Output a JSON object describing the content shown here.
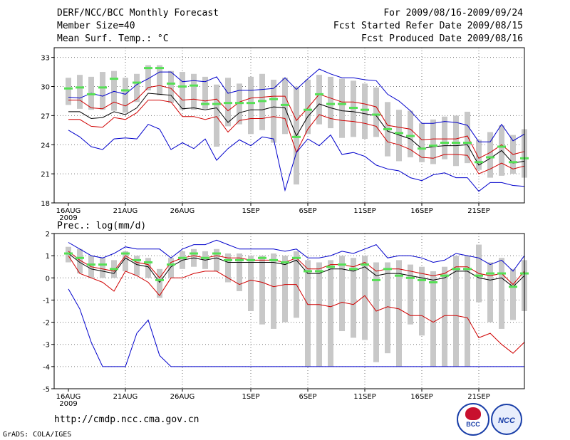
{
  "header": {
    "title": "DERF/NCC/BCC Monthly Forecast",
    "member_size": "Member Size=40",
    "variable": "Mean Surf. Temp.: °C",
    "for_period": "For 2009/08/16-2009/09/24",
    "fcst_started": "Fcst Started Refer Date 2009/08/15",
    "fcst_produced": "Fcst Produced Date 2009/08/16"
  },
  "panel2_label": "Prec.: log(mm/d)",
  "footer": {
    "url": "http://cmdp.ncc.cma.gov.cn",
    "grads": "GrADS: COLA/IGES",
    "logo_left_text": "BCC",
    "logo_right_text": "NCC"
  },
  "colors": {
    "box": "#c8c8c8",
    "median": "#55e055",
    "mean": "#000000",
    "spread": "#d00000",
    "extreme": "#0000cc"
  },
  "chart_data": [
    {
      "type": "line",
      "name": "temperature",
      "ylabel": "Mean Surf. Temp.: °C",
      "ylim": [
        18,
        34
      ],
      "yticks": [
        18,
        21,
        24,
        27,
        30,
        33
      ],
      "xlim": [
        0,
        39
      ],
      "xticks": [
        {
          "i": 0,
          "label": "16AUG",
          "sub": "2009"
        },
        {
          "i": 5,
          "label": "21AUG"
        },
        {
          "i": 10,
          "label": "26AUG"
        },
        {
          "i": 16,
          "label": "1SEP"
        },
        {
          "i": 21,
          "label": "6SEP"
        },
        {
          "i": 26,
          "label": "11SEP"
        },
        {
          "i": 31,
          "label": "16SEP"
        },
        {
          "i": 36,
          "label": "21SEP"
        }
      ],
      "series": [
        {
          "name": "max",
          "role": "extreme",
          "values": [
            28.9,
            28.8,
            29.3,
            29.0,
            29.5,
            29.2,
            30.2,
            30.8,
            31.5,
            31.5,
            30.5,
            30.6,
            30.5,
            31.0,
            29.3,
            29.6,
            29.6,
            29.7,
            29.8,
            30.9,
            29.7,
            30.8,
            31.8,
            31.3,
            30.9,
            30.9,
            30.7,
            30.6,
            29.2,
            28.5,
            27.5,
            26.2,
            26.2,
            26.4,
            26.3,
            26.0,
            24.3,
            24.3,
            26.1,
            24.4,
            25.1
          ]
        },
        {
          "name": "upper",
          "role": "spread",
          "values": [
            28.6,
            28.6,
            27.8,
            27.7,
            28.4,
            28.0,
            28.7,
            29.9,
            30.1,
            29.8,
            28.6,
            28.7,
            28.5,
            28.7,
            27.5,
            28.4,
            28.8,
            28.9,
            29.0,
            29.0,
            26.5,
            27.8,
            29.2,
            28.8,
            28.4,
            28.4,
            28.2,
            27.9,
            26.0,
            25.8,
            25.6,
            24.5,
            24.6,
            24.6,
            24.6,
            24.9,
            22.6,
            23.2,
            24.0,
            23.0,
            23.3
          ]
        },
        {
          "name": "mean",
          "role": "mean",
          "values": [
            27.4,
            27.4,
            26.7,
            26.8,
            27.4,
            27.1,
            27.8,
            29.3,
            29.2,
            29.1,
            27.7,
            27.8,
            27.6,
            27.8,
            26.3,
            27.3,
            27.6,
            27.6,
            27.9,
            27.8,
            24.9,
            26.9,
            28.2,
            27.8,
            27.5,
            27.4,
            27.2,
            27.0,
            25.4,
            25.0,
            24.6,
            23.6,
            23.8,
            23.9,
            23.9,
            24.0,
            21.9,
            22.6,
            23.4,
            22.1,
            22.3
          ]
        },
        {
          "name": "lower",
          "role": "spread",
          "values": [
            26.6,
            26.6,
            25.9,
            25.8,
            26.8,
            26.6,
            27.3,
            28.6,
            28.6,
            28.4,
            26.9,
            26.9,
            26.6,
            26.9,
            25.3,
            26.5,
            26.7,
            26.7,
            26.9,
            26.7,
            23.2,
            25.6,
            27.1,
            26.7,
            26.5,
            26.4,
            26.2,
            25.9,
            24.3,
            24.0,
            23.5,
            22.7,
            22.6,
            23.0,
            23.0,
            22.9,
            21.0,
            21.5,
            22.1,
            21.5,
            21.8
          ]
        },
        {
          "name": "min",
          "role": "extreme",
          "values": [
            25.5,
            24.8,
            23.8,
            23.5,
            24.6,
            24.7,
            24.6,
            26.1,
            25.6,
            23.5,
            24.2,
            23.6,
            24.6,
            22.4,
            23.6,
            24.5,
            23.9,
            24.8,
            24.6,
            19.3,
            23.2,
            24.6,
            23.9,
            25.0,
            23.0,
            23.2,
            22.8,
            21.9,
            21.5,
            21.3,
            20.6,
            20.3,
            20.9,
            21.1,
            20.6,
            20.6,
            19.2,
            20.1,
            20.1,
            19.8,
            19.7
          ]
        },
        {
          "name": "median",
          "role": "median",
          "values": [
            29.8,
            29.9,
            29.2,
            29.9,
            30.8,
            29.6,
            30.4,
            31.9,
            31.9,
            30.3,
            30.0,
            30.1,
            28.2,
            28.2,
            28.3,
            28.3,
            28.3,
            28.5,
            28.7,
            28.1,
            24.8,
            27.6,
            29.2,
            28.2,
            28.2,
            27.8,
            27.6,
            27.1,
            25.6,
            25.2,
            24.9,
            23.6,
            23.9,
            24.2,
            24.2,
            24.2,
            22.2,
            22.7,
            23.8,
            22.2,
            22.6
          ]
        },
        {
          "name": "box_top",
          "role": "box",
          "values": [
            30.9,
            31.2,
            31.0,
            31.5,
            31.6,
            30.9,
            31.3,
            32.2,
            32.2,
            31.6,
            31.5,
            31.3,
            31.0,
            30.2,
            30.9,
            30.3,
            31.0,
            31.3,
            30.7,
            30.9,
            30.0,
            30.7,
            31.2,
            31.0,
            30.8,
            30.6,
            30.3,
            29.9,
            28.4,
            27.6,
            27.5,
            26.2,
            26.6,
            26.9,
            27.0,
            27.4,
            24.5,
            25.3,
            26.0,
            25.0,
            25.6
          ]
        },
        {
          "name": "box_bottom",
          "role": "box",
          "values": [
            28.1,
            27.7,
            27.6,
            27.6,
            27.5,
            27.3,
            28.4,
            29.6,
            29.1,
            28.3,
            27.6,
            27.6,
            27.7,
            23.8,
            25.9,
            26.1,
            25.1,
            25.5,
            24.2,
            25.1,
            19.9,
            25.1,
            26.1,
            25.7,
            24.7,
            24.8,
            24.6,
            24.8,
            22.8,
            22.3,
            22.7,
            22.2,
            22.0,
            22.5,
            21.8,
            22.1,
            21.4,
            20.6,
            20.8,
            21.0,
            20.6
          ]
        }
      ]
    },
    {
      "type": "line",
      "name": "precipitation",
      "ylabel": "Prec.: log(mm/d)",
      "ylim": [
        -5,
        2
      ],
      "yticks": [
        -5,
        -4,
        -3,
        -2,
        -1,
        0,
        1,
        2
      ],
      "xlim": [
        0,
        39
      ],
      "xticks": [
        {
          "i": 0,
          "label": "16AUG",
          "sub": "2009"
        },
        {
          "i": 5,
          "label": "21AUG"
        },
        {
          "i": 10,
          "label": "26AUG"
        },
        {
          "i": 16,
          "label": "1SEP"
        },
        {
          "i": 21,
          "label": "6SEP"
        },
        {
          "i": 26,
          "label": "11SEP"
        },
        {
          "i": 31,
          "label": "16SEP"
        },
        {
          "i": 36,
          "label": "21SEP"
        }
      ],
      "series": [
        {
          "name": "max",
          "role": "extreme",
          "values": [
            1.6,
            1.3,
            1.0,
            0.9,
            1.1,
            1.4,
            1.3,
            1.3,
            1.3,
            0.9,
            1.3,
            1.5,
            1.5,
            1.7,
            1.5,
            1.3,
            1.3,
            1.3,
            1.3,
            1.2,
            1.3,
            0.9,
            0.9,
            1.0,
            1.2,
            1.1,
            1.3,
            1.5,
            0.9,
            1.0,
            1.0,
            0.9,
            0.7,
            0.8,
            1.1,
            1.0,
            0.9,
            0.6,
            0.8,
            0.3,
            1.0
          ]
        },
        {
          "name": "upper",
          "role": "spread",
          "values": [
            1.2,
            0.8,
            0.5,
            0.4,
            0.3,
            1.0,
            0.7,
            0.6,
            0.0,
            0.7,
            0.9,
            1.0,
            0.9,
            1.0,
            0.9,
            0.9,
            0.8,
            0.8,
            0.8,
            0.7,
            0.9,
            0.4,
            0.4,
            0.6,
            0.6,
            0.5,
            0.7,
            0.3,
            0.4,
            0.4,
            0.3,
            0.2,
            0.1,
            0.2,
            0.5,
            0.5,
            0.2,
            0.1,
            0.2,
            -0.3,
            0.3
          ]
        },
        {
          "name": "mean",
          "role": "mean",
          "values": [
            1.1,
            0.7,
            0.4,
            0.3,
            0.2,
            0.9,
            0.6,
            0.5,
            -0.2,
            0.5,
            0.8,
            0.9,
            0.8,
            0.9,
            0.7,
            0.7,
            0.7,
            0.7,
            0.7,
            0.6,
            0.8,
            0.2,
            0.2,
            0.4,
            0.4,
            0.3,
            0.5,
            0.1,
            0.2,
            0.2,
            0.1,
            0.0,
            -0.1,
            0.0,
            0.3,
            0.3,
            0.0,
            -0.1,
            0.0,
            -0.4,
            0.1
          ]
        },
        {
          "name": "lower",
          "role": "spread",
          "values": [
            1.0,
            0.2,
            0.0,
            -0.2,
            -0.6,
            0.3,
            0.1,
            -0.2,
            -0.8,
            0.0,
            0.0,
            0.2,
            0.3,
            0.3,
            0.0,
            -0.3,
            -0.1,
            -0.2,
            -0.4,
            -0.3,
            -0.3,
            -1.2,
            -1.2,
            -1.3,
            -1.1,
            -1.2,
            -0.8,
            -1.5,
            -1.3,
            -1.4,
            -1.7,
            -1.7,
            -2.0,
            -1.7,
            -1.7,
            -1.8,
            -2.7,
            -2.5,
            -3.0,
            -3.4,
            -2.9
          ]
        },
        {
          "name": "min",
          "role": "extreme",
          "values": [
            -0.5,
            -1.4,
            -2.9,
            -4.0,
            -4.0,
            -4.0,
            -2.5,
            -1.9,
            -3.5,
            -4.0,
            -4.0,
            -4.0,
            -4.0,
            -4.0,
            -4.0,
            -4.0,
            -4.0,
            -4.0,
            -4.0,
            -4.0,
            -4.0,
            -4.0,
            -4.0,
            -4.0,
            -4.0,
            -4.0,
            -4.0,
            -4.0,
            -4.0,
            -4.0,
            -4.0,
            -4.0,
            -4.0,
            -4.0,
            -4.0,
            -4.0,
            -4.0,
            -4.0,
            -4.0,
            -4.0,
            -4.0
          ]
        },
        {
          "name": "median",
          "role": "median",
          "values": [
            1.1,
            0.9,
            0.6,
            0.6,
            0.4,
            1.1,
            0.8,
            0.7,
            -0.1,
            0.6,
            0.9,
            1.1,
            0.9,
            1.1,
            0.8,
            0.8,
            0.8,
            0.9,
            0.8,
            0.7,
            0.9,
            0.3,
            0.3,
            0.5,
            0.6,
            0.4,
            0.6,
            -0.1,
            0.4,
            0.1,
            0.0,
            -0.1,
            -0.2,
            0.1,
            0.4,
            0.4,
            0.1,
            0.2,
            0.2,
            -0.4,
            0.2
          ]
        },
        {
          "name": "box_top",
          "role": "box",
          "values": [
            1.4,
            1.3,
            1.0,
            0.9,
            0.8,
            1.2,
            1.0,
            0.9,
            0.4,
            0.9,
            1.2,
            1.3,
            1.2,
            1.3,
            1.1,
            1.1,
            1.0,
            1.0,
            1.1,
            1.0,
            1.2,
            0.8,
            0.7,
            0.8,
            1.0,
            0.9,
            1.0,
            0.7,
            0.7,
            0.8,
            0.6,
            0.5,
            0.3,
            0.5,
            1.0,
            1.0,
            1.5,
            0.7,
            0.9,
            0.4,
            0.8
          ]
        },
        {
          "name": "box_bottom",
          "role": "box",
          "values": [
            0.7,
            0.2,
            0.0,
            0.0,
            0.0,
            0.3,
            0.1,
            0.0,
            -0.9,
            0.0,
            0.4,
            0.5,
            0.4,
            0.3,
            -0.2,
            -0.6,
            -1.5,
            -2.1,
            -2.3,
            -2.0,
            -1.8,
            -4.0,
            -4.0,
            -4.0,
            -2.4,
            -2.7,
            -2.8,
            -3.8,
            -3.4,
            -4.0,
            -2.1,
            -2.6,
            -4.0,
            -4.0,
            -4.0,
            -4.0,
            -1.1,
            -2.0,
            -2.3,
            -1.9,
            -1.5
          ]
        }
      ]
    }
  ]
}
